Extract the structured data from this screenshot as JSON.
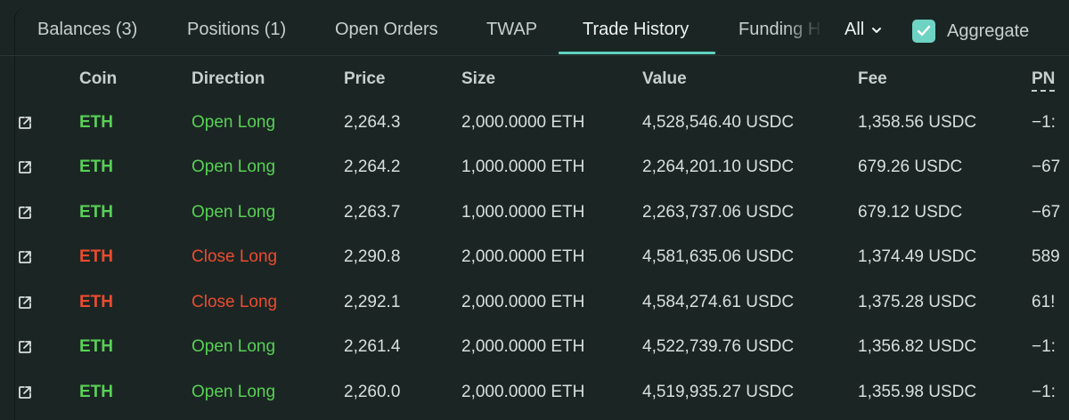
{
  "tabs": [
    {
      "label": "Balances (3)"
    },
    {
      "label": "Positions (1)"
    },
    {
      "label": "Open Orders"
    },
    {
      "label": "TWAP"
    },
    {
      "label": "Trade History"
    },
    {
      "label": "Funding H"
    }
  ],
  "active_tab": "Trade History",
  "filter": {
    "value": "All"
  },
  "aggregate": {
    "label": "Aggregate",
    "checked": true
  },
  "columns": {
    "coin": "Coin",
    "direction": "Direction",
    "price": "Price",
    "size": "Size",
    "value": "Value",
    "fee": "Fee",
    "pnl": "PN"
  },
  "rows": [
    {
      "coin": "ETH",
      "direction": "Open Long",
      "price": "2,264.3",
      "size": "2,000.0000 ETH",
      "value": "4,528,546.40 USDC",
      "fee": "1,358.56 USDC",
      "pnl": "−1:",
      "side": "long"
    },
    {
      "coin": "ETH",
      "direction": "Open Long",
      "price": "2,264.2",
      "size": "1,000.0000 ETH",
      "value": "2,264,201.10 USDC",
      "fee": "679.26 USDC",
      "pnl": "−67",
      "side": "long"
    },
    {
      "coin": "ETH",
      "direction": "Open Long",
      "price": "2,263.7",
      "size": "1,000.0000 ETH",
      "value": "2,263,737.06 USDC",
      "fee": "679.12 USDC",
      "pnl": "−67",
      "side": "long"
    },
    {
      "coin": "ETH",
      "direction": "Close Long",
      "price": "2,290.8",
      "size": "2,000.0000 ETH",
      "value": "4,581,635.06 USDC",
      "fee": "1,374.49 USDC",
      "pnl": "589",
      "side": "close"
    },
    {
      "coin": "ETH",
      "direction": "Close Long",
      "price": "2,292.1",
      "size": "2,000.0000 ETH",
      "value": "4,584,274.61 USDC",
      "fee": "1,375.28 USDC",
      "pnl": "61!",
      "side": "close"
    },
    {
      "coin": "ETH",
      "direction": "Open Long",
      "price": "2,261.4",
      "size": "2,000.0000 ETH",
      "value": "4,522,739.76 USDC",
      "fee": "1,356.82 USDC",
      "pnl": "−1:",
      "side": "long"
    },
    {
      "coin": "ETH",
      "direction": "Open Long",
      "price": "2,260.0",
      "size": "2,000.0000 ETH",
      "value": "4,519,935.27 USDC",
      "fee": "1,355.98 USDC",
      "pnl": "−1:",
      "side": "long"
    }
  ],
  "colors": {
    "long": "#58d055",
    "close": "#ec4b2f",
    "accent": "#5fd3c1",
    "background": "#1b2624"
  },
  "icons": {
    "row_link": "external-link-icon",
    "filter": "chevron-down-icon",
    "aggregate": "check-icon"
  }
}
